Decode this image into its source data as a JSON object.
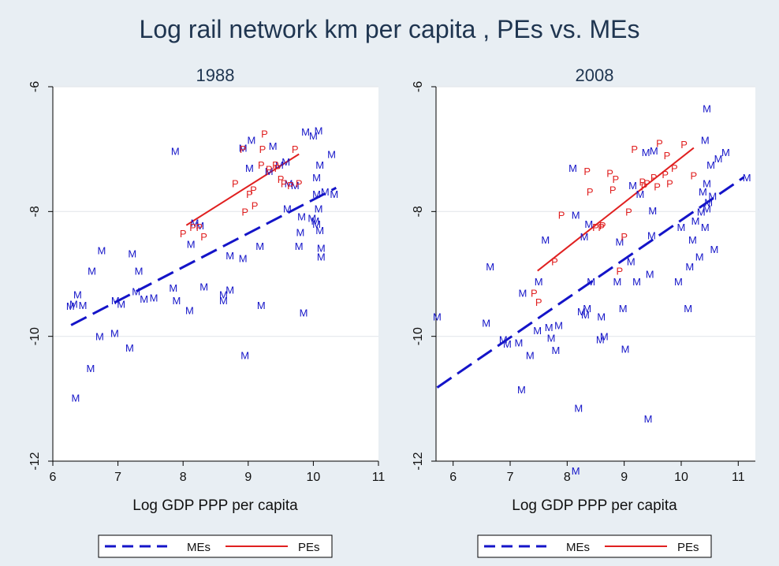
{
  "figure": {
    "title": "Log rail network km per capita , PEs vs. MEs",
    "colors": {
      "background": "#e8eef3",
      "plot_bg": "#ffffff",
      "ME": "#1414c8",
      "PE": "#e02020",
      "grid": "#e6eaee"
    }
  },
  "chart_data": [
    {
      "type": "scatter",
      "title": "1988",
      "xlabel": "Log GDP PPP per capita",
      "ylabel": "",
      "xlim": [
        6,
        11
      ],
      "ylim": [
        -12,
        -6
      ],
      "xticks": [
        "6",
        "7",
        "8",
        "9",
        "10",
        "11"
      ],
      "yticks": [
        "-12",
        "-10",
        "-8",
        "-6"
      ],
      "grid": true,
      "legend": [
        "MEs",
        "PEs"
      ],
      "legend_position": "bottom",
      "series": [
        {
          "name": "MEs",
          "marker": "M",
          "color": "#1414c8",
          "points": [
            [
              6.35,
              -10.98
            ],
            [
              6.27,
              -9.51
            ],
            [
              6.38,
              -9.33
            ],
            [
              6.32,
              -9.48
            ],
            [
              6.46,
              -9.5
            ],
            [
              6.58,
              -10.51
            ],
            [
              6.6,
              -8.95
            ],
            [
              6.75,
              -8.62
            ],
            [
              6.72,
              -10.0
            ],
            [
              6.95,
              -9.95
            ],
            [
              6.96,
              -9.42
            ],
            [
              7.05,
              -9.48
            ],
            [
              7.18,
              -10.18
            ],
            [
              7.22,
              -8.67
            ],
            [
              7.28,
              -9.28
            ],
            [
              7.32,
              -8.95
            ],
            [
              7.4,
              -9.4
            ],
            [
              7.55,
              -9.38
            ],
            [
              7.85,
              -9.22
            ],
            [
              7.9,
              -9.42
            ],
            [
              8.1,
              -9.58
            ],
            [
              7.88,
              -7.03
            ],
            [
              8.18,
              -8.18
            ],
            [
              8.12,
              -8.52
            ],
            [
              8.32,
              -9.2
            ],
            [
              8.26,
              -8.22
            ],
            [
              8.62,
              -9.33
            ],
            [
              8.62,
              -9.42
            ],
            [
              8.72,
              -9.25
            ],
            [
              8.72,
              -8.7
            ],
            [
              8.92,
              -8.75
            ],
            [
              8.95,
              -10.3
            ],
            [
              8.92,
              -6.98
            ],
            [
              9.05,
              -6.85
            ],
            [
              9.18,
              -8.55
            ],
            [
              9.2,
              -9.5
            ],
            [
              9.02,
              -7.3
            ],
            [
              9.32,
              -7.35
            ],
            [
              9.38,
              -6.95
            ],
            [
              9.48,
              -7.25
            ],
            [
              9.58,
              -7.2
            ],
            [
              9.6,
              -7.95
            ],
            [
              9.62,
              -7.55
            ],
            [
              9.72,
              -7.58
            ],
            [
              9.78,
              -8.55
            ],
            [
              9.82,
              -8.08
            ],
            [
              9.8,
              -8.33
            ],
            [
              9.85,
              -9.62
            ],
            [
              9.88,
              -6.72
            ],
            [
              10.0,
              -6.78
            ],
            [
              10.08,
              -6.7
            ],
            [
              10.05,
              -7.45
            ],
            [
              10.1,
              -7.25
            ],
            [
              10.05,
              -7.72
            ],
            [
              10.03,
              -8.15
            ],
            [
              10.05,
              -8.2
            ],
            [
              10.08,
              -7.95
            ],
            [
              10.1,
              -8.3
            ],
            [
              10.12,
              -8.58
            ],
            [
              10.12,
              -8.72
            ],
            [
              10.18,
              -7.68
            ],
            [
              10.28,
              -7.08
            ],
            [
              10.32,
              -7.72
            ],
            [
              9.98,
              -8.1
            ]
          ]
        },
        {
          "name": "PEs",
          "marker": "P",
          "color": "#e02020",
          "points": [
            [
              8.0,
              -8.35
            ],
            [
              8.15,
              -8.25
            ],
            [
              8.25,
              -8.25
            ],
            [
              8.32,
              -8.4
            ],
            [
              8.8,
              -7.55
            ],
            [
              8.92,
              -7.0
            ],
            [
              8.95,
              -8.0
            ],
            [
              9.02,
              -7.72
            ],
            [
              9.08,
              -7.65
            ],
            [
              9.1,
              -7.9
            ],
            [
              9.2,
              -7.25
            ],
            [
              9.22,
              -7.0
            ],
            [
              9.25,
              -6.75
            ],
            [
              9.32,
              -7.32
            ],
            [
              9.45,
              -7.3
            ],
            [
              9.42,
              -7.25
            ],
            [
              9.5,
              -7.48
            ],
            [
              9.55,
              -7.55
            ],
            [
              9.65,
              -7.58
            ],
            [
              9.72,
              -7.0
            ],
            [
              9.78,
              -7.55
            ]
          ]
        }
      ],
      "fits": [
        {
          "name": "MEs",
          "from": [
            6.28,
            -9.82
          ],
          "to": [
            10.35,
            -7.62
          ],
          "style": "dashed",
          "color": "#1414c8"
        },
        {
          "name": "PEs",
          "from": [
            8.05,
            -8.22
          ],
          "to": [
            9.78,
            -7.08
          ],
          "style": "solid",
          "color": "#e02020"
        }
      ]
    },
    {
      "type": "scatter",
      "title": "2008",
      "xlabel": "Log GDP PPP per capita",
      "ylabel": "",
      "xlim": [
        5.7,
        11.3
      ],
      "ylim": [
        -12,
        -6
      ],
      "xticks": [
        "6",
        "7",
        "8",
        "9",
        "10",
        "11"
      ],
      "yticks": [
        "-12",
        "-10",
        "-8",
        "-6"
      ],
      "grid": true,
      "legend": [
        "MEs",
        "PEs"
      ],
      "legend_position": "bottom",
      "series": [
        {
          "name": "MEs",
          "marker": "M",
          "color": "#1414c8",
          "points": [
            [
              5.72,
              -9.68
            ],
            [
              6.58,
              -9.78
            ],
            [
              6.65,
              -8.88
            ],
            [
              6.88,
              -10.05
            ],
            [
              6.95,
              -10.12
            ],
            [
              7.15,
              -10.1
            ],
            [
              7.2,
              -10.85
            ],
            [
              7.22,
              -9.3
            ],
            [
              7.35,
              -10.3
            ],
            [
              7.48,
              -9.9
            ],
            [
              7.5,
              -9.12
            ],
            [
              7.68,
              -9.85
            ],
            [
              7.72,
              -10.02
            ],
            [
              7.8,
              -10.22
            ],
            [
              7.85,
              -9.82
            ],
            [
              7.62,
              -8.45
            ],
            [
              8.15,
              -8.05
            ],
            [
              8.1,
              -7.3
            ],
            [
              8.25,
              -9.6
            ],
            [
              8.32,
              -9.65
            ],
            [
              8.35,
              -9.55
            ],
            [
              8.3,
              -8.4
            ],
            [
              8.38,
              -8.2
            ],
            [
              8.42,
              -9.12
            ],
            [
              8.2,
              -11.15
            ],
            [
              8.15,
              -12.15
            ],
            [
              8.58,
              -10.05
            ],
            [
              8.6,
              -9.68
            ],
            [
              8.65,
              -10.0
            ],
            [
              8.88,
              -9.12
            ],
            [
              8.92,
              -8.48
            ],
            [
              8.98,
              -9.55
            ],
            [
              9.02,
              -10.2
            ],
            [
              9.12,
              -8.8
            ],
            [
              9.15,
              -7.58
            ],
            [
              9.22,
              -9.12
            ],
            [
              9.28,
              -7.72
            ],
            [
              9.38,
              -7.05
            ],
            [
              9.42,
              -11.32
            ],
            [
              9.45,
              -9.0
            ],
            [
              9.5,
              -7.98
            ],
            [
              9.48,
              -8.38
            ],
            [
              9.52,
              -7.02
            ],
            [
              9.95,
              -9.12
            ],
            [
              10.0,
              -8.25
            ],
            [
              10.12,
              -9.55
            ],
            [
              10.15,
              -8.88
            ],
            [
              10.2,
              -8.45
            ],
            [
              10.25,
              -8.15
            ],
            [
              10.32,
              -8.72
            ],
            [
              10.38,
              -7.68
            ],
            [
              10.42,
              -6.85
            ],
            [
              10.45,
              -6.35
            ],
            [
              10.45,
              -7.55
            ],
            [
              10.48,
              -7.85
            ],
            [
              10.52,
              -7.25
            ],
            [
              10.55,
              -7.75
            ],
            [
              10.58,
              -8.6
            ],
            [
              10.42,
              -8.25
            ],
            [
              10.65,
              -7.15
            ],
            [
              10.78,
              -7.05
            ],
            [
              11.15,
              -7.45
            ],
            [
              10.35,
              -8.0
            ],
            [
              10.45,
              -7.95
            ]
          ]
        },
        {
          "name": "PEs",
          "marker": "P",
          "color": "#e02020",
          "points": [
            [
              7.42,
              -9.3
            ],
            [
              7.5,
              -9.45
            ],
            [
              7.78,
              -8.8
            ],
            [
              7.9,
              -8.05
            ],
            [
              8.35,
              -7.35
            ],
            [
              8.4,
              -7.68
            ],
            [
              8.5,
              -8.25
            ],
            [
              8.6,
              -8.25
            ],
            [
              8.62,
              -8.22
            ],
            [
              8.75,
              -7.38
            ],
            [
              8.8,
              -7.65
            ],
            [
              8.85,
              -7.48
            ],
            [
              8.92,
              -8.95
            ],
            [
              9.0,
              -8.4
            ],
            [
              9.08,
              -8.0
            ],
            [
              9.18,
              -7.0
            ],
            [
              9.32,
              -7.52
            ],
            [
              9.35,
              -7.6
            ],
            [
              9.4,
              -7.55
            ],
            [
              9.52,
              -7.45
            ],
            [
              9.58,
              -7.6
            ],
            [
              9.62,
              -6.9
            ],
            [
              9.72,
              -7.4
            ],
            [
              9.75,
              -7.1
            ],
            [
              9.8,
              -7.55
            ],
            [
              9.88,
              -7.3
            ],
            [
              10.05,
              -6.92
            ],
            [
              10.22,
              -7.42
            ]
          ]
        }
      ],
      "fits": [
        {
          "name": "MEs",
          "from": [
            5.72,
            -10.82
          ],
          "to": [
            11.1,
            -7.45
          ],
          "style": "dashed",
          "color": "#1414c8"
        },
        {
          "name": "PEs",
          "from": [
            7.48,
            -8.95
          ],
          "to": [
            10.22,
            -6.98
          ],
          "style": "solid",
          "color": "#e02020"
        }
      ]
    }
  ]
}
